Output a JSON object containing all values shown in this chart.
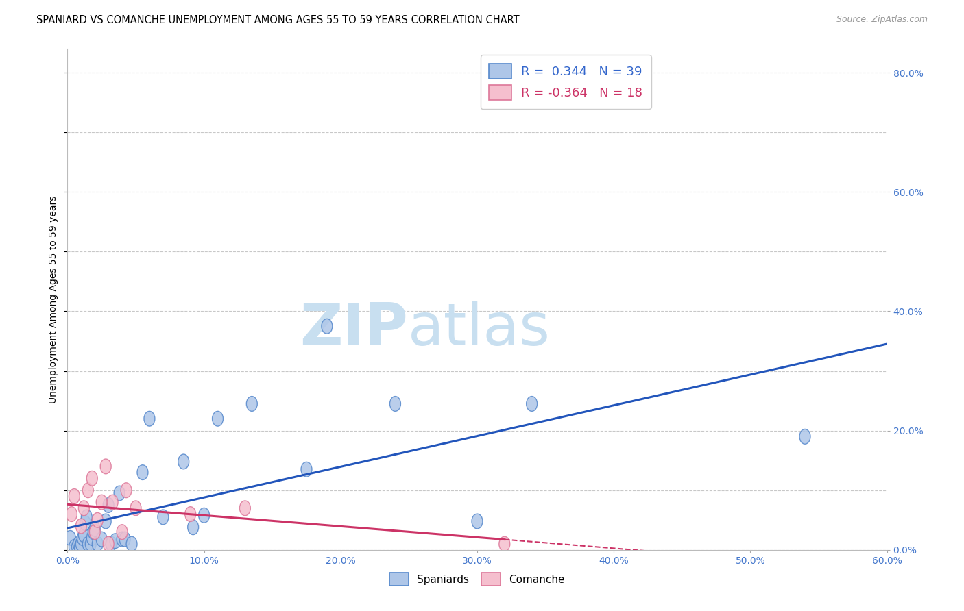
{
  "title": "SPANIARD VS COMANCHE UNEMPLOYMENT AMONG AGES 55 TO 59 YEARS CORRELATION CHART",
  "source": "Source: ZipAtlas.com",
  "ylabel": "Unemployment Among Ages 55 to 59 years",
  "xlim": [
    0.0,
    0.6
  ],
  "ylim": [
    0.0,
    0.84
  ],
  "xticks": [
    0.0,
    0.1,
    0.2,
    0.3,
    0.4,
    0.5,
    0.6
  ],
  "yticks_right": [
    0.0,
    0.2,
    0.4,
    0.6,
    0.8
  ],
  "background_color": "#ffffff",
  "grid_color": "#c8c8c8",
  "spaniards_color": "#aec6e8",
  "spaniards_edge_color": "#5588cc",
  "comanche_color": "#f5bfce",
  "comanche_edge_color": "#dd7799",
  "spaniards_line_color": "#2255bb",
  "comanche_line_color": "#cc3366",
  "legend_label_spaniards": "R =  0.344   N = 39",
  "legend_label_comanche": "R = -0.364   N = 18",
  "watermark_zip": "ZIP",
  "watermark_atlas": "atlas",
  "spaniards_x": [
    0.002,
    0.005,
    0.007,
    0.008,
    0.009,
    0.01,
    0.011,
    0.012,
    0.013,
    0.014,
    0.015,
    0.017,
    0.018,
    0.019,
    0.02,
    0.022,
    0.025,
    0.028,
    0.03,
    0.032,
    0.035,
    0.038,
    0.04,
    0.042,
    0.047,
    0.055,
    0.06,
    0.07,
    0.085,
    0.092,
    0.1,
    0.11,
    0.135,
    0.175,
    0.19,
    0.24,
    0.3,
    0.34,
    0.54
  ],
  "spaniards_y": [
    0.02,
    0.005,
    0.005,
    0.01,
    0.005,
    0.01,
    0.02,
    0.025,
    0.045,
    0.055,
    0.01,
    0.01,
    0.02,
    0.03,
    0.035,
    0.01,
    0.018,
    0.048,
    0.075,
    0.01,
    0.015,
    0.095,
    0.018,
    0.018,
    0.01,
    0.13,
    0.22,
    0.055,
    0.148,
    0.038,
    0.058,
    0.22,
    0.245,
    0.135,
    0.375,
    0.245,
    0.048,
    0.245,
    0.19
  ],
  "comanche_x": [
    0.003,
    0.005,
    0.01,
    0.012,
    0.015,
    0.018,
    0.02,
    0.022,
    0.025,
    0.028,
    0.03,
    0.033,
    0.04,
    0.043,
    0.05,
    0.09,
    0.13,
    0.32
  ],
  "comanche_y": [
    0.06,
    0.09,
    0.04,
    0.07,
    0.1,
    0.12,
    0.03,
    0.05,
    0.08,
    0.14,
    0.01,
    0.08,
    0.03,
    0.1,
    0.07,
    0.06,
    0.07,
    0.01
  ],
  "title_fontsize": 10.5,
  "axis_label_fontsize": 10,
  "tick_fontsize": 10,
  "legend_fontsize": 13
}
